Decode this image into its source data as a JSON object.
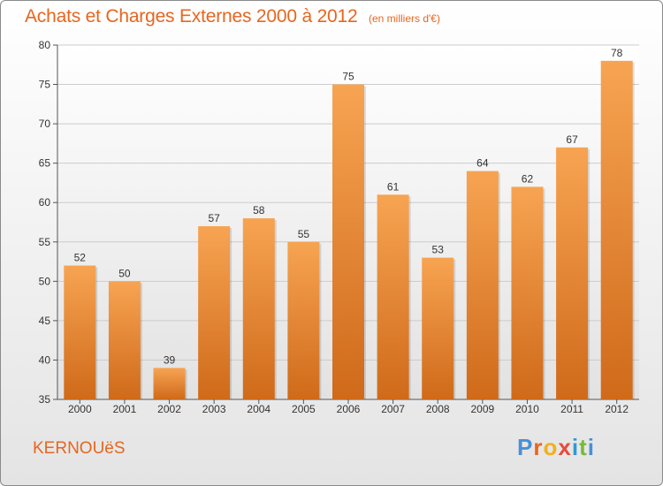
{
  "header": {
    "title": "Achats et Charges Externes 2000 à 2012",
    "subtitle": "(en milliers d'€)"
  },
  "footer": {
    "commune": "KERNOUëS",
    "logo": "Proxiti",
    "logo_colors": [
      "#4a8fd6",
      "#e8651e",
      "#f2b01e",
      "#e84a3a",
      "#2c9ad6",
      "#7ab83a",
      "#4a8fd6"
    ]
  },
  "colors": {
    "accent": "#e8651e",
    "bar_top": "#f7a452",
    "bar_bottom": "#cf6a1a",
    "grid": "#cccccc"
  },
  "chart_data": {
    "type": "bar",
    "categories": [
      "2000",
      "2001",
      "2002",
      "2003",
      "2004",
      "2005",
      "2006",
      "2007",
      "2008",
      "2009",
      "2010",
      "2011",
      "2012"
    ],
    "values": [
      52,
      50,
      39,
      57,
      58,
      55,
      75,
      61,
      53,
      64,
      62,
      67,
      78
    ],
    "ylim": [
      35,
      80
    ],
    "yticks": [
      35,
      40,
      45,
      50,
      55,
      60,
      65,
      70,
      75,
      80
    ],
    "grid": true,
    "data_labels": true
  }
}
